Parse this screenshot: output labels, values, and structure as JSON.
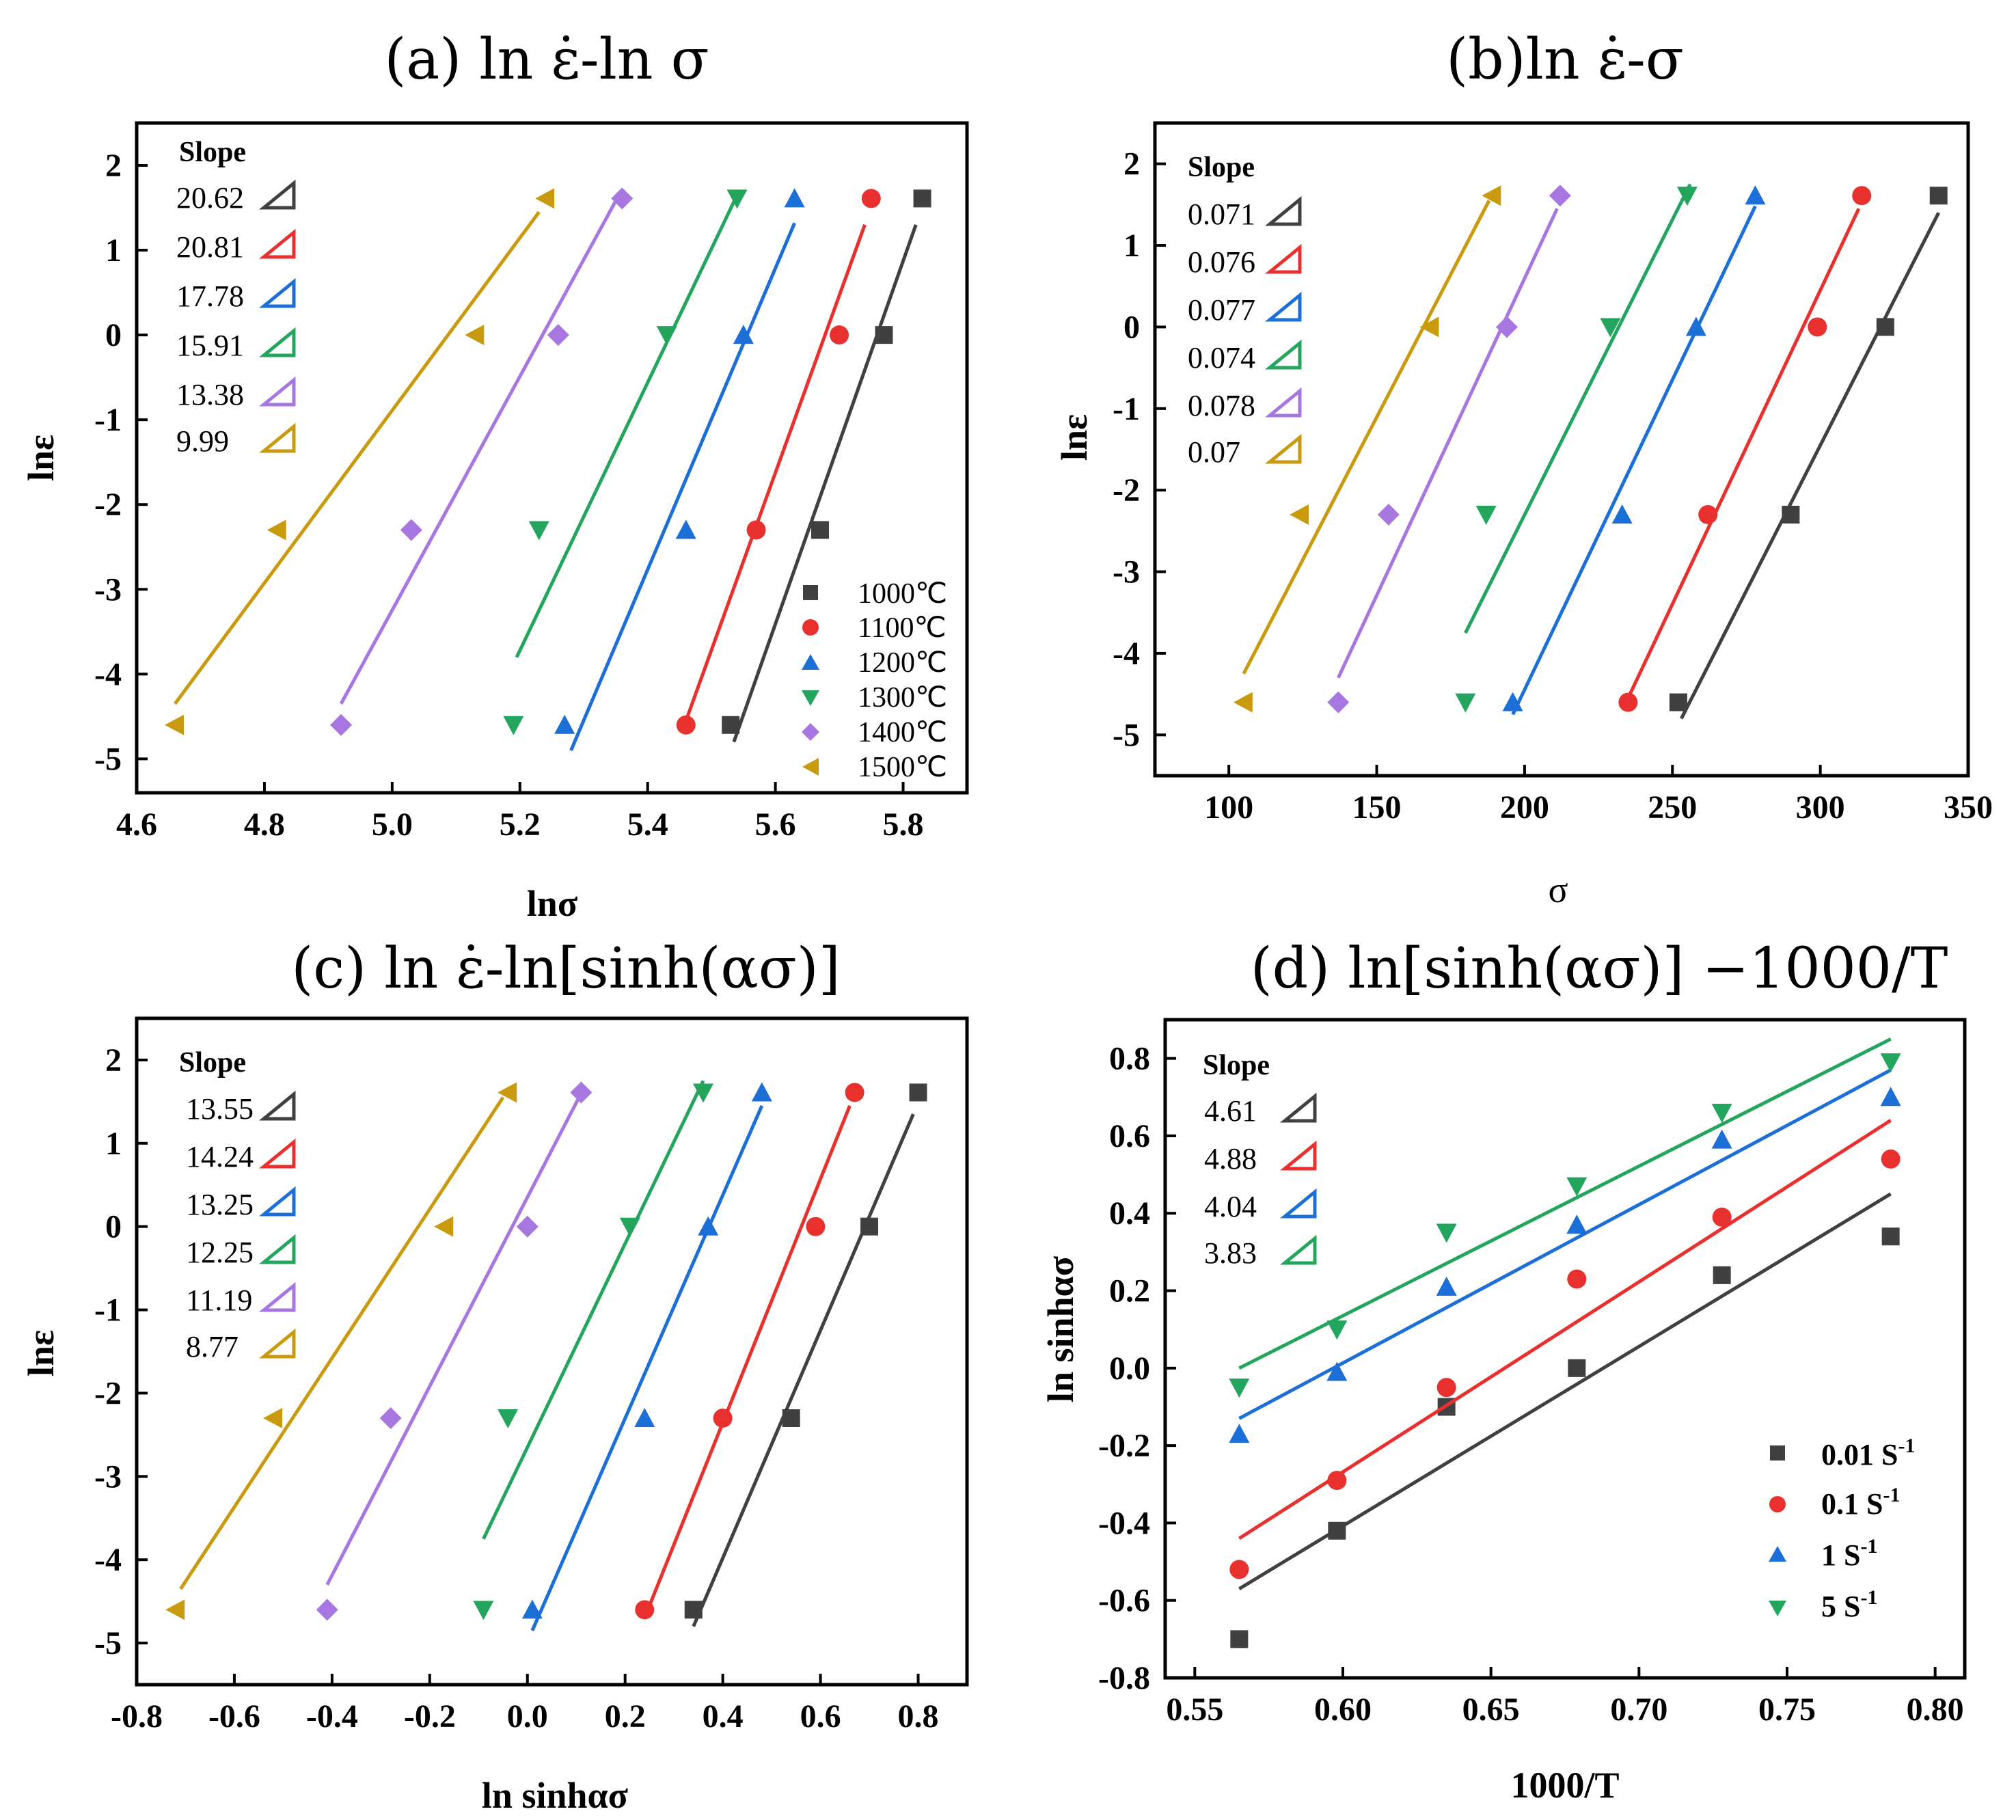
{
  "colors": {
    "1000": "#404040",
    "1100": "#e8312f",
    "1200": "#1c6fd6",
    "1300": "#24a55d",
    "1400": "#a876e0",
    "1500": "#c99a0e"
  },
  "rate_colors": [
    "#404040",
    "#e8312f",
    "#1c6fd6",
    "#24a55d"
  ],
  "chart_data": [
    {
      "id": "a",
      "type": "scatter",
      "title": "(a) ln ε̇-ln σ",
      "xlabel": "lnσ",
      "ylabel": "lnε",
      "xlim": [
        4.6,
        5.9
      ],
      "ylim": [
        -5.4,
        2.5
      ],
      "xticks": [
        4.6,
        4.8,
        5.0,
        5.2,
        5.4,
        5.6,
        5.8
      ],
      "xtick_labels": [
        "4.6",
        "4.8",
        "5.0",
        "5.2",
        "5.4",
        "5.6",
        "5.8"
      ],
      "yticks": [
        2,
        1,
        0,
        -1,
        -2,
        -3,
        -4,
        -5
      ],
      "ytick_labels": [
        "2",
        "1",
        "0",
        "-1",
        "-2",
        "-3",
        "-4",
        "-5"
      ],
      "slope_header": "Slope",
      "slopes": [
        "20.62",
        "20.81",
        "17.78",
        "15.91",
        "13.38",
        "9.99"
      ],
      "legend": [
        "1000℃",
        "1100℃",
        "1200℃",
        "1300℃",
        "1400℃",
        "1500℃"
      ],
      "legend_position": "bottom-right",
      "series": [
        {
          "name": "1000℃",
          "color_key": "1000",
          "marker": "square",
          "x": [
            5.53,
            5.67,
            5.77,
            5.83
          ],
          "y": [
            -4.6,
            -2.3,
            0.0,
            1.61
          ],
          "fit": [
            [
              5.535,
              -4.8
            ],
            [
              5.82,
              1.3
            ]
          ]
        },
        {
          "name": "1100℃",
          "color_key": "1100",
          "marker": "circle",
          "x": [
            5.46,
            5.57,
            5.7,
            5.75
          ],
          "y": [
            -4.6,
            -2.3,
            0.0,
            1.61
          ],
          "fit": [
            [
              5.46,
              -4.55
            ],
            [
              5.74,
              1.3
            ]
          ]
        },
        {
          "name": "1200℃",
          "color_key": "1200",
          "marker": "triangle-up",
          "x": [
            5.27,
            5.46,
            5.55,
            5.63
          ],
          "y": [
            -4.6,
            -2.3,
            0.0,
            1.61
          ],
          "fit": [
            [
              5.28,
              -4.9
            ],
            [
              5.63,
              1.32
            ]
          ]
        },
        {
          "name": "1300℃",
          "color_key": "1300",
          "marker": "triangle-down",
          "x": [
            5.19,
            5.23,
            5.43,
            5.54
          ],
          "y": [
            -4.6,
            -2.3,
            0.0,
            1.61
          ],
          "fit": [
            [
              5.195,
              -3.8
            ],
            [
              5.54,
              1.65
            ]
          ]
        },
        {
          "name": "1400℃",
          "color_key": "1400",
          "marker": "diamond",
          "x": [
            4.92,
            5.03,
            5.26,
            5.36
          ],
          "y": [
            -4.6,
            -2.3,
            0.0,
            1.61
          ],
          "fit": [
            [
              4.92,
              -4.35
            ],
            [
              5.35,
              1.58
            ]
          ]
        },
        {
          "name": "1500℃",
          "color_key": "1500",
          "marker": "triangle-left",
          "x": [
            4.66,
            4.82,
            5.13,
            5.24
          ],
          "y": [
            -4.6,
            -2.3,
            0.0,
            1.61
          ],
          "fit": [
            [
              4.66,
              -4.35
            ],
            [
              5.23,
              1.45
            ]
          ]
        }
      ]
    },
    {
      "id": "b",
      "type": "scatter",
      "title": "(b)ln ε̇-σ",
      "xlabel": "σ",
      "ylabel": "lnε",
      "xlim": [
        75,
        350
      ],
      "ylim": [
        -5.5,
        2.5
      ],
      "xticks": [
        100,
        150,
        200,
        250,
        300,
        350
      ],
      "xtick_labels": [
        "100",
        "150",
        "200",
        "250",
        "300",
        "350"
      ],
      "yticks": [
        2,
        1,
        0,
        -1,
        -2,
        -3,
        -4,
        -5
      ],
      "ytick_labels": [
        "2",
        "1",
        "0",
        "-1",
        "-2",
        "-3",
        "-4",
        "-5"
      ],
      "slope_header": "Slope",
      "slopes": [
        "0.071",
        "0.076",
        "0.077",
        "0.074",
        "0.078",
        "0.07"
      ],
      "series": [
        {
          "name": "1000℃",
          "color_key": "1000",
          "marker": "square",
          "x": [
            252,
            290,
            322,
            340
          ],
          "y": [
            -4.6,
            -2.3,
            0.0,
            1.61
          ],
          "fit": [
            [
              253,
              -4.8
            ],
            [
              340,
              1.4
            ]
          ]
        },
        {
          "name": "1100℃",
          "color_key": "1100",
          "marker": "circle",
          "x": [
            235,
            262,
            299,
            314
          ],
          "y": [
            -4.6,
            -2.3,
            0.0,
            1.61
          ],
          "fit": [
            [
              235,
              -4.55
            ],
            [
              313,
              1.45
            ]
          ]
        },
        {
          "name": "1200℃",
          "color_key": "1200",
          "marker": "triangle-up",
          "x": [
            196,
            233,
            258,
            278
          ],
          "y": [
            -4.6,
            -2.3,
            0.0,
            1.61
          ],
          "fit": [
            [
              196,
              -4.75
            ],
            [
              278,
              1.48
            ]
          ]
        },
        {
          "name": "1300℃",
          "color_key": "1300",
          "marker": "triangle-down",
          "x": [
            180,
            187,
            229,
            255
          ],
          "y": [
            -4.6,
            -2.3,
            0.0,
            1.61
          ],
          "fit": [
            [
              180,
              -3.75
            ],
            [
              256,
              1.75
            ]
          ]
        },
        {
          "name": "1400℃",
          "color_key": "1400",
          "marker": "diamond",
          "x": [
            137,
            154,
            194,
            212
          ],
          "y": [
            -4.6,
            -2.3,
            0.0,
            1.61
          ],
          "fit": [
            [
              137,
              -4.3
            ],
            [
              211,
              1.45
            ]
          ]
        },
        {
          "name": "1500℃",
          "color_key": "1500",
          "marker": "triangle-left",
          "x": [
            105,
            124,
            168,
            189
          ],
          "y": [
            -4.6,
            -2.3,
            0.0,
            1.61
          ],
          "fit": [
            [
              105,
              -4.25
            ],
            [
              188,
              1.55
            ]
          ]
        }
      ]
    },
    {
      "id": "c",
      "type": "scatter",
      "title": "(c) ln ε̇-ln[sinh(ασ)]",
      "xlabel": "ln sinhασ",
      "ylabel": "lnε",
      "xlim": [
        -0.8,
        0.9
      ],
      "ylim": [
        -5.5,
        2.5
      ],
      "xticks": [
        -0.8,
        -0.6,
        -0.4,
        -0.2,
        0.0,
        0.2,
        0.4,
        0.6,
        0.8
      ],
      "xtick_labels": [
        "-0.8",
        "-0.6",
        "-0.4",
        "-0.2",
        "0.0",
        "0.2",
        "0.4",
        "0.6",
        "0.8"
      ],
      "yticks": [
        2,
        1,
        0,
        -1,
        -2,
        -3,
        -4,
        -5
      ],
      "ytick_labels": [
        "2",
        "1",
        "0",
        "-1",
        "-2",
        "-3",
        "-4",
        "-5"
      ],
      "slope_header": "Slope",
      "slopes": [
        "13.55",
        "14.24",
        "13.25",
        "12.25",
        "11.19",
        "8.77"
      ],
      "series": [
        {
          "name": "1000℃",
          "color_key": "1000",
          "marker": "square",
          "x": [
            0.34,
            0.54,
            0.7,
            0.8
          ],
          "y": [
            -4.6,
            -2.3,
            0.0,
            1.61
          ],
          "fit": [
            [
              0.34,
              -4.8
            ],
            [
              0.79,
              1.35
            ]
          ]
        },
        {
          "name": "1100℃",
          "color_key": "1100",
          "marker": "circle",
          "x": [
            0.24,
            0.4,
            0.59,
            0.67
          ],
          "y": [
            -4.6,
            -2.3,
            0.0,
            1.61
          ],
          "fit": [
            [
              0.25,
              -4.55
            ],
            [
              0.66,
              1.45
            ]
          ]
        },
        {
          "name": "1200℃",
          "color_key": "1200",
          "marker": "triangle-up",
          "x": [
            0.01,
            0.24,
            0.37,
            0.48
          ],
          "y": [
            -4.6,
            -2.3,
            0.0,
            1.61
          ],
          "fit": [
            [
              0.01,
              -4.85
            ],
            [
              0.48,
              1.45
            ]
          ]
        },
        {
          "name": "1300℃",
          "color_key": "1300",
          "marker": "triangle-down",
          "x": [
            -0.09,
            -0.04,
            0.21,
            0.36
          ],
          "y": [
            -4.6,
            -2.3,
            0.0,
            1.61
          ],
          "fit": [
            [
              -0.09,
              -3.75
            ],
            [
              0.36,
              1.75
            ]
          ]
        },
        {
          "name": "1400℃",
          "color_key": "1400",
          "marker": "diamond",
          "x": [
            -0.41,
            -0.28,
            0.0,
            0.11
          ],
          "y": [
            -4.6,
            -2.3,
            0.0,
            1.61
          ],
          "fit": [
            [
              -0.41,
              -4.3
            ],
            [
              0.11,
              1.6
            ]
          ]
        },
        {
          "name": "1500℃",
          "color_key": "1500",
          "marker": "triangle-left",
          "x": [
            -0.72,
            -0.52,
            -0.17,
            -0.04
          ],
          "y": [
            -4.6,
            -2.3,
            0.0,
            1.61
          ],
          "fit": [
            [
              -0.71,
              -4.35
            ],
            [
              -0.05,
              1.55
            ]
          ]
        }
      ]
    },
    {
      "id": "d",
      "type": "scatter",
      "title": "(d) ln[sinh(ασ)] −1000/T",
      "xlabel": "1000/T",
      "ylabel": "ln sinhασ",
      "xlim": [
        0.54,
        0.81
      ],
      "ylim": [
        -0.8,
        0.9
      ],
      "xticks": [
        0.55,
        0.6,
        0.65,
        0.7,
        0.75,
        0.8
      ],
      "xtick_labels": [
        "0.55",
        "0.60",
        "0.65",
        "0.70",
        "0.75",
        "0.80"
      ],
      "yticks": [
        0.8,
        0.6,
        0.4,
        0.2,
        0.0,
        -0.2,
        -0.4,
        -0.6,
        -0.8
      ],
      "ytick_labels": [
        "0.8",
        "0.6",
        "0.4",
        "0.2",
        "0.0",
        "-0.2",
        "-0.4",
        "-0.6",
        "-0.8"
      ],
      "slope_header": "Slope",
      "slopes": [
        "4.61",
        "4.88",
        "4.04",
        "3.83"
      ],
      "legend": [
        {
          "base": "0.01 S",
          "exp": "-1"
        },
        {
          "base": "0.1 S",
          "exp": "-1"
        },
        {
          "base": "1 S",
          "exp": "-1"
        },
        {
          "base": "5 S",
          "exp": "-1"
        }
      ],
      "legend_position": "bottom-right",
      "series": [
        {
          "name": "0.01 S-1",
          "color_index": 0,
          "marker": "square",
          "x": [
            0.565,
            0.598,
            0.635,
            0.679,
            0.728,
            0.785
          ],
          "y": [
            -0.7,
            -0.42,
            -0.1,
            0.0,
            0.24,
            0.34
          ],
          "fit": [
            [
              0.565,
              -0.57
            ],
            [
              0.785,
              0.45
            ]
          ]
        },
        {
          "name": "0.1 S-1",
          "color_index": 1,
          "marker": "circle",
          "x": [
            0.565,
            0.598,
            0.635,
            0.679,
            0.728,
            0.785
          ],
          "y": [
            -0.52,
            -0.29,
            -0.05,
            0.23,
            0.39,
            0.54
          ],
          "fit": [
            [
              0.565,
              -0.44
            ],
            [
              0.785,
              0.64
            ]
          ]
        },
        {
          "name": "1 S-1",
          "color_index": 2,
          "marker": "triangle-up",
          "x": [
            0.565,
            0.598,
            0.635,
            0.679,
            0.728,
            0.785
          ],
          "y": [
            -0.17,
            -0.01,
            0.21,
            0.37,
            0.59,
            0.7
          ],
          "fit": [
            [
              0.565,
              -0.13
            ],
            [
              0.785,
              0.77
            ]
          ]
        },
        {
          "name": "5 S-1",
          "color_index": 3,
          "marker": "triangle-down",
          "x": [
            0.565,
            0.598,
            0.635,
            0.679,
            0.728,
            0.785
          ],
          "y": [
            -0.05,
            0.1,
            0.35,
            0.47,
            0.66,
            0.79
          ],
          "fit": [
            [
              0.565,
              0.0
            ],
            [
              0.785,
              0.85
            ]
          ]
        }
      ]
    }
  ]
}
